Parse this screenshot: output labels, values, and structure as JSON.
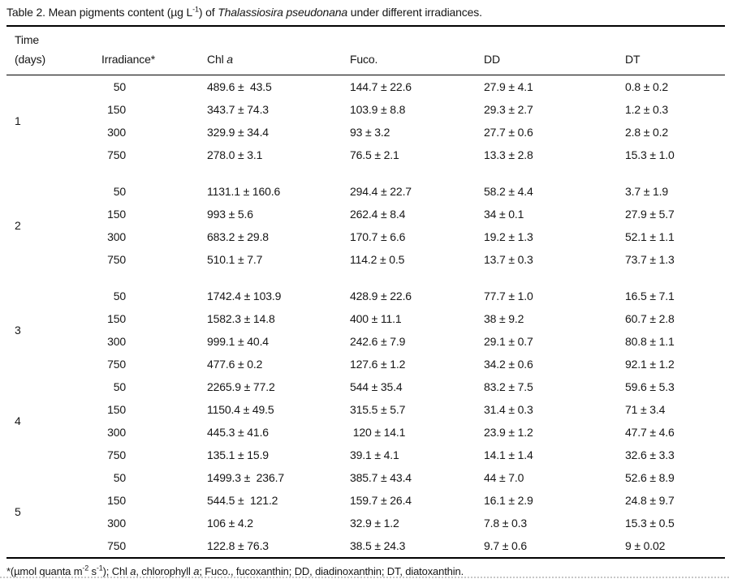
{
  "title_segments": [
    {
      "t": "Table 2. Mean pigments content (µg L"
    },
    {
      "t": "-1",
      "sup": true
    },
    {
      "t": ") of "
    },
    {
      "t": "Thalassiosira pseudonana",
      "i": true
    },
    {
      "t": " under different irradiances."
    }
  ],
  "table": {
    "headers": {
      "time_line1": "Time",
      "time_line2": "(days)",
      "irradiance": "Irradiance*",
      "chl_a_segments": [
        {
          "t": "Chl "
        },
        {
          "t": "a",
          "i": true
        }
      ],
      "fuco": "Fuco.",
      "dd": "DD",
      "dt": "DT"
    },
    "groups": [
      {
        "day": "1",
        "gap_after": true,
        "rows": [
          [
            "50",
            "489.6 ±  43.5",
            "144.7 ± 22.6",
            "27.9 ± 4.1",
            "0.8 ± 0.2"
          ],
          [
            "150",
            "343.7 ± 74.3",
            "103.9 ± 8.8",
            "29.3 ± 2.7",
            "1.2 ± 0.3"
          ],
          [
            "300",
            "329.9 ± 34.4",
            "93 ± 3.2",
            "27.7 ± 0.6",
            "2.8 ± 0.2"
          ],
          [
            "750",
            "278.0 ± 3.1",
            "76.5 ± 2.1",
            "13.3 ± 2.8",
            "15.3 ± 1.0"
          ]
        ]
      },
      {
        "day": "2",
        "gap_after": true,
        "rows": [
          [
            "50",
            "1131.1 ± 160.6",
            "294.4 ± 22.7",
            "58.2 ± 4.4",
            "3.7 ± 1.9"
          ],
          [
            "150",
            "993 ± 5.6",
            "262.4 ± 8.4",
            "34 ± 0.1",
            "27.9 ± 5.7"
          ],
          [
            "300",
            "683.2 ± 29.8",
            "170.7 ± 6.6",
            "19.2 ± 1.3",
            "52.1 ± 1.1"
          ],
          [
            "750",
            "510.1 ± 7.7",
            "114.2 ± 0.5",
            "13.7 ± 0.3",
            "73.7 ± 1.3"
          ]
        ]
      },
      {
        "day": "3",
        "gap_after": false,
        "rows": [
          [
            "50",
            "1742.4 ± 103.9",
            "428.9 ± 22.6",
            "77.7 ± 1.0",
            "16.5 ± 7.1"
          ],
          [
            "150",
            "1582.3 ± 14.8",
            "400 ± 11.1",
            "38 ± 9.2",
            "60.7 ± 2.8"
          ],
          [
            "300",
            "999.1 ± 40.4",
            "242.6 ± 7.9",
            "29.1 ± 0.7",
            "80.8 ± 1.1"
          ],
          [
            "750",
            "477.6 ± 0.2",
            "127.6 ± 1.2",
            "34.2 ± 0.6",
            "92.1 ± 1.2"
          ]
        ]
      },
      {
        "day": "4",
        "gap_after": false,
        "rows": [
          [
            "50",
            "2265.9 ± 77.2",
            "544 ± 35.4",
            "83.2 ± 7.5",
            "59.6 ± 5.3"
          ],
          [
            "150",
            "1150.4 ± 49.5",
            "315.5 ± 5.7",
            "31.4 ± 0.3",
            "71 ± 3.4"
          ],
          [
            "300",
            "445.3 ± 41.6",
            " 120 ± 14.1",
            "23.9 ± 1.2",
            "47.7 ± 4.6"
          ],
          [
            "750",
            "135.1 ± 15.9",
            "39.1 ± 4.1",
            "14.1 ± 1.4",
            "32.6 ± 3.3"
          ]
        ]
      },
      {
        "day": "5",
        "gap_after": false,
        "rows": [
          [
            "50",
            "1499.3 ±  236.7",
            "385.7 ± 43.4",
            "44 ± 7.0",
            "52.6 ± 8.9"
          ],
          [
            "150",
            "544.5 ±  121.2",
            "159.7 ± 26.4",
            "16.1 ± 2.9",
            "24.8 ± 9.7"
          ],
          [
            "300",
            "106 ± 4.2",
            "32.9 ± 1.2",
            "7.8 ± 0.3",
            "15.3 ± 0.5"
          ],
          [
            "750",
            "122.8 ± 76.3",
            "38.5 ± 24.3",
            "9.7 ± 0.6",
            "9 ± 0.02"
          ]
        ]
      }
    ]
  },
  "footnote_segments": [
    {
      "t": "*(µmol quanta m"
    },
    {
      "t": "-2",
      "sup": true
    },
    {
      "t": " s"
    },
    {
      "t": "-1",
      "sup": true
    },
    {
      "t": "); Chl "
    },
    {
      "t": "a",
      "i": true
    },
    {
      "t": ", chlorophyll "
    },
    {
      "t": "a",
      "i": true
    },
    {
      "t": "; Fuco., fucoxanthin; DD, diadinoxanthin; DT, diatoxanthin."
    }
  ]
}
